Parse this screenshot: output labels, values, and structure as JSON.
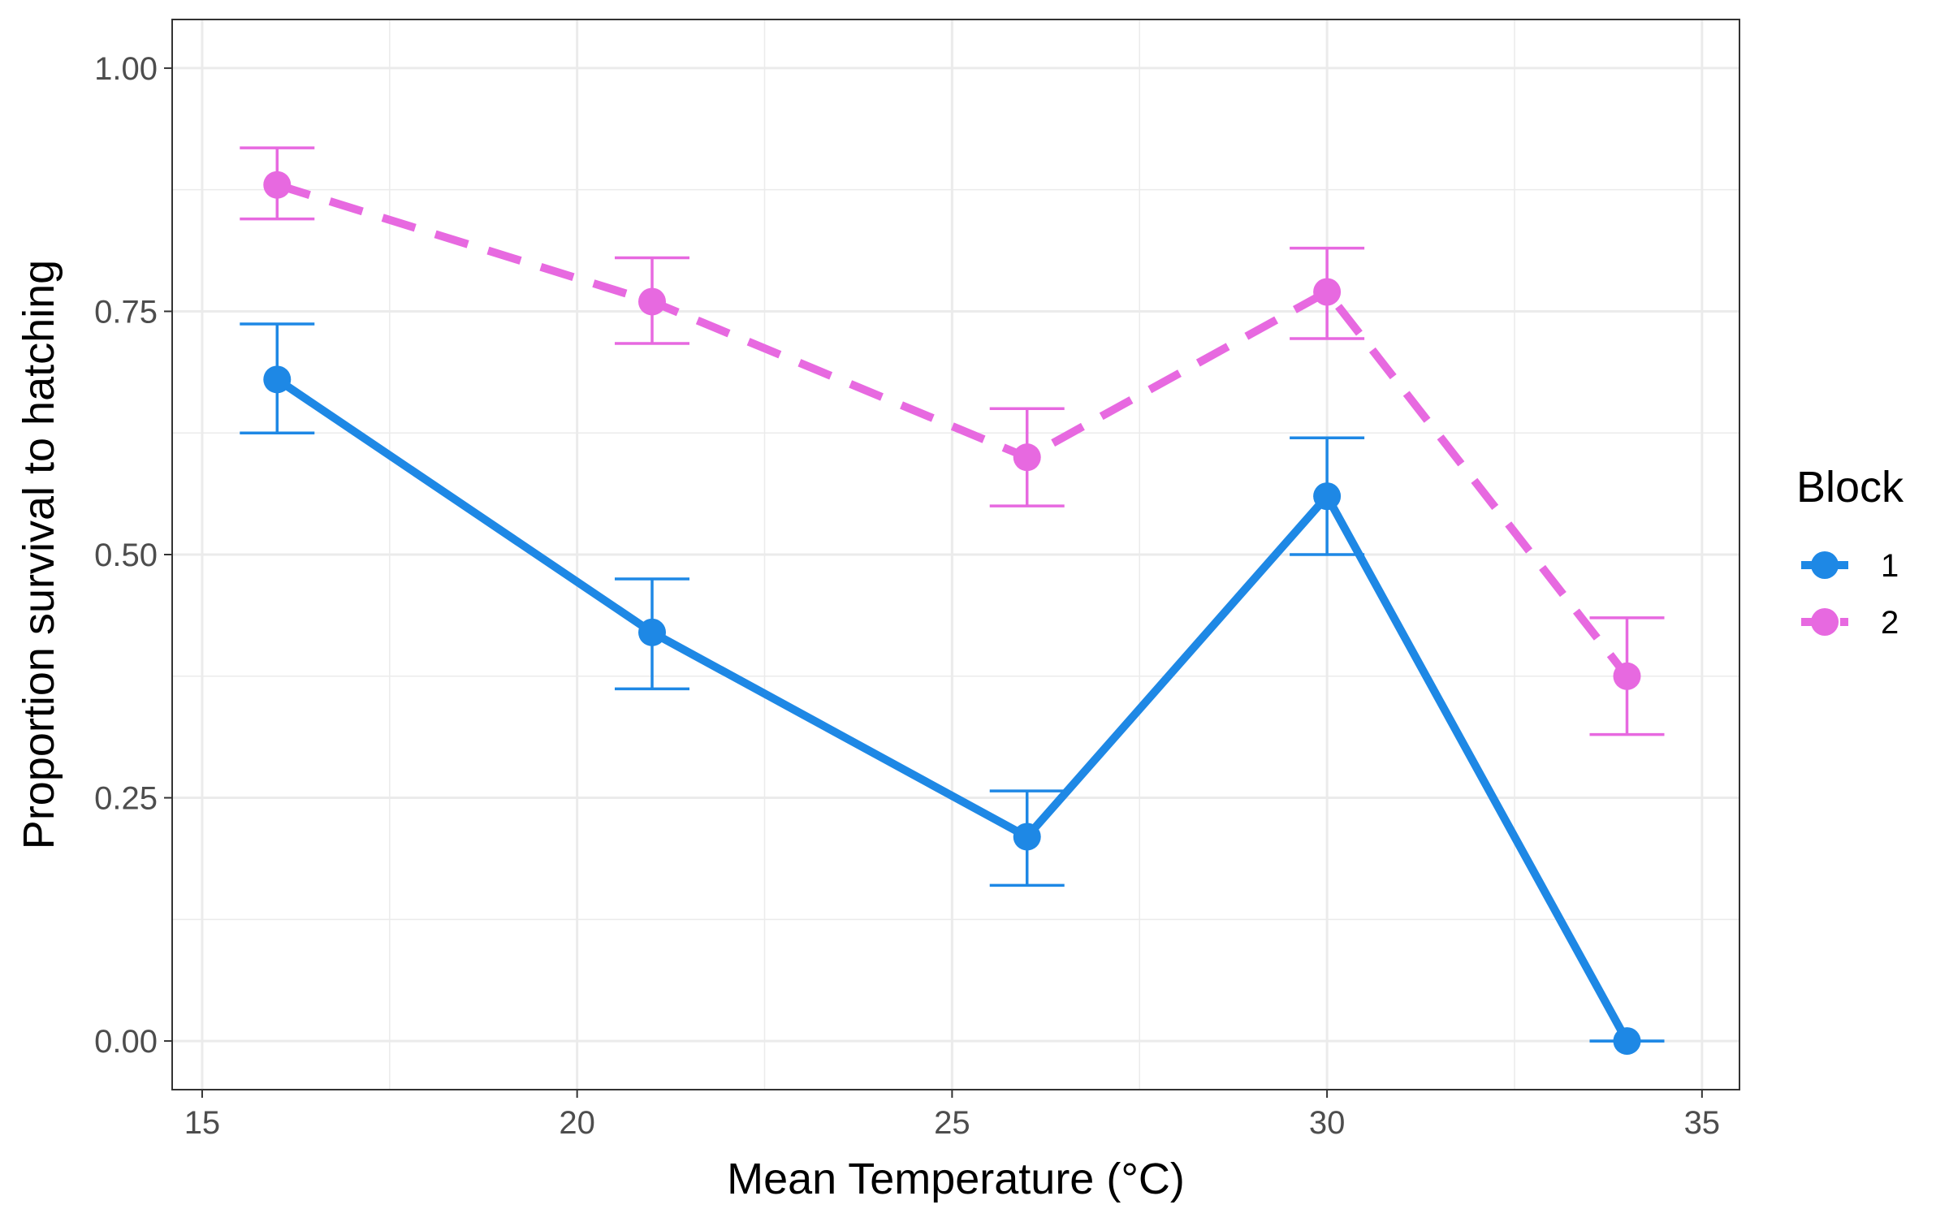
{
  "chart_data": {
    "type": "line",
    "xlabel": "Mean Temperature (°C)",
    "ylabel": "Proportion survival to hatching",
    "xlim": [
      14.6,
      35.5
    ],
    "ylim": [
      -0.05,
      1.05
    ],
    "x_ticks": [
      15,
      20,
      25,
      30,
      35
    ],
    "x_tick_labels": [
      "15",
      "20",
      "25",
      "30",
      "35"
    ],
    "y_ticks": [
      0,
      0.25,
      0.5,
      0.75,
      1.0
    ],
    "y_tick_labels": [
      "0.00",
      "0.25",
      "0.50",
      "0.75",
      "1.00"
    ],
    "grid": true,
    "legend": {
      "title": "Block",
      "placement": "right"
    },
    "series": [
      {
        "name": "1",
        "color": "#1E88E5",
        "line_style": "solid",
        "x": [
          16,
          21,
          26,
          30,
          34
        ],
        "y": [
          0.68,
          0.42,
          0.21,
          0.56,
          0.0
        ],
        "error_low": [
          0.625,
          0.362,
          0.16,
          0.5,
          0.0
        ],
        "error_high": [
          0.737,
          0.475,
          0.257,
          0.62,
          0.0
        ]
      },
      {
        "name": "2",
        "color": "#E769E0",
        "line_style": "dashed",
        "x": [
          16,
          21,
          26,
          30,
          34
        ],
        "y": [
          0.88,
          0.76,
          0.6,
          0.77,
          0.375
        ],
        "error_low": [
          0.845,
          0.717,
          0.55,
          0.722,
          0.315
        ],
        "error_high": [
          0.918,
          0.805,
          0.65,
          0.815,
          0.435
        ]
      }
    ]
  }
}
